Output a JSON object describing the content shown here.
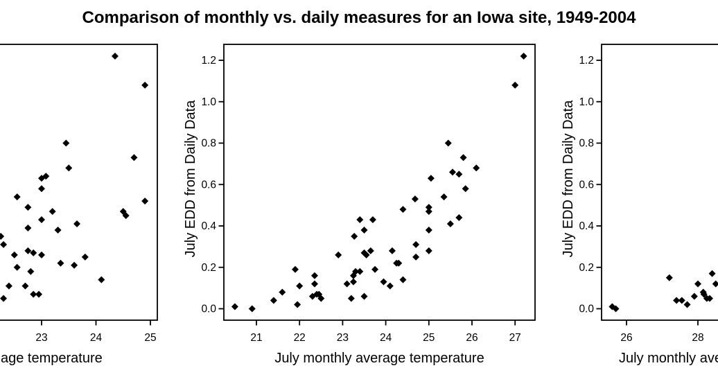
{
  "title": "Comparison of monthly vs. daily measures for an Iowa site, 1949-2004",
  "marker_color": "#000000",
  "axis_color": "#000000",
  "background_color": "#ffffff",
  "chart_data": [
    {
      "id": "left-scatter-panel",
      "position": "left",
      "type": "scatter",
      "title": "",
      "xlabel": "age temperature",
      "xlabel_is_clipped_fragment": true,
      "ylabel": "",
      "x_ticks": [
        23,
        24,
        25
      ],
      "x_tick_labels": [
        "23",
        "24",
        "25"
      ],
      "y_ticks": [],
      "y_tick_labels": [],
      "xlim": [
        22.23,
        25.13
      ],
      "ylim": [
        -0.05,
        1.28
      ],
      "grid": false,
      "points": [
        [
          22.25,
          0.35
        ],
        [
          22.3,
          0.31
        ],
        [
          22.3,
          0.05
        ],
        [
          22.4,
          0.11
        ],
        [
          22.5,
          0.26
        ],
        [
          22.55,
          0.54
        ],
        [
          22.55,
          0.2
        ],
        [
          22.7,
          0.11
        ],
        [
          22.75,
          0.49
        ],
        [
          22.75,
          0.39
        ],
        [
          22.75,
          0.28
        ],
        [
          22.85,
          0.27
        ],
        [
          22.8,
          0.18
        ],
        [
          22.85,
          0.07
        ],
        [
          22.95,
          0.07
        ],
        [
          23.0,
          0.63
        ],
        [
          23.08,
          0.64
        ],
        [
          23.0,
          0.58
        ],
        [
          23.0,
          0.43
        ],
        [
          23.0,
          0.26
        ],
        [
          23.2,
          0.47
        ],
        [
          23.3,
          0.38
        ],
        [
          23.35,
          0.22
        ],
        [
          23.45,
          0.8
        ],
        [
          23.5,
          0.68
        ],
        [
          23.6,
          0.21
        ],
        [
          23.65,
          0.41
        ],
        [
          23.8,
          0.25
        ],
        [
          24.1,
          0.14
        ],
        [
          24.35,
          1.22
        ],
        [
          24.5,
          0.47
        ],
        [
          24.55,
          0.45
        ],
        [
          24.7,
          0.73
        ],
        [
          24.9,
          1.08
        ],
        [
          24.9,
          0.52
        ]
      ]
    },
    {
      "id": "middle-scatter-panel",
      "position": "middle",
      "type": "scatter",
      "title": "",
      "xlabel": "July monthly average temperature",
      "xlabel_is_clipped_fragment": false,
      "ylabel": "July EDD from Daily Data",
      "x_ticks": [
        21,
        22,
        23,
        24,
        25,
        26,
        27
      ],
      "x_tick_labels": [
        "21",
        "22",
        "23",
        "24",
        "25",
        "26",
        "27"
      ],
      "y_ticks": [
        0,
        0.2,
        0.4,
        0.6,
        0.8,
        1.0,
        1.2
      ],
      "y_tick_labels": [
        "0.0",
        "0.2",
        "0.4",
        "0.6",
        "0.8",
        "1.0",
        "1.2"
      ],
      "xlim": [
        20.25,
        27.47
      ],
      "ylim": [
        -0.05,
        1.28
      ],
      "grid": false,
      "points": [
        [
          20.5,
          0.01
        ],
        [
          20.9,
          0.0
        ],
        [
          21.4,
          0.04
        ],
        [
          21.6,
          0.08
        ],
        [
          21.9,
          0.19
        ],
        [
          21.95,
          0.02
        ],
        [
          22.0,
          0.11
        ],
        [
          22.3,
          0.06
        ],
        [
          22.35,
          0.16
        ],
        [
          22.35,
          0.12
        ],
        [
          22.4,
          0.07
        ],
        [
          22.45,
          0.07
        ],
        [
          22.5,
          0.05
        ],
        [
          22.9,
          0.26
        ],
        [
          23.1,
          0.12
        ],
        [
          23.2,
          0.05
        ],
        [
          23.25,
          0.16
        ],
        [
          23.25,
          0.13
        ],
        [
          23.27,
          0.35
        ],
        [
          23.3,
          0.18
        ],
        [
          23.4,
          0.18
        ],
        [
          23.4,
          0.43
        ],
        [
          23.5,
          0.38
        ],
        [
          23.5,
          0.27
        ],
        [
          23.55,
          0.26
        ],
        [
          23.65,
          0.28
        ],
        [
          23.5,
          0.06
        ],
        [
          23.7,
          0.43
        ],
        [
          23.75,
          0.19
        ],
        [
          23.95,
          0.13
        ],
        [
          24.1,
          0.11
        ],
        [
          24.15,
          0.28
        ],
        [
          24.25,
          0.22
        ],
        [
          24.3,
          0.22
        ],
        [
          24.4,
          0.48
        ],
        [
          24.4,
          0.14
        ],
        [
          24.68,
          0.53
        ],
        [
          24.7,
          0.31
        ],
        [
          24.7,
          0.25
        ],
        [
          25.0,
          0.49
        ],
        [
          25.0,
          0.47
        ],
        [
          25.0,
          0.38
        ],
        [
          25.0,
          0.28
        ],
        [
          25.05,
          0.63
        ],
        [
          25.35,
          0.54
        ],
        [
          25.45,
          0.8
        ],
        [
          25.5,
          0.41
        ],
        [
          25.55,
          0.66
        ],
        [
          25.7,
          0.65
        ],
        [
          25.7,
          0.44
        ],
        [
          25.8,
          0.73
        ],
        [
          25.85,
          0.58
        ],
        [
          26.1,
          0.68
        ],
        [
          27.0,
          1.08
        ],
        [
          27.2,
          1.22
        ]
      ]
    },
    {
      "id": "right-scatter-panel",
      "position": "right",
      "type": "scatter",
      "title": "",
      "xlabel": "July monthly ave",
      "xlabel_is_clipped_fragment": true,
      "ylabel": "July EDD from Daily Data",
      "x_ticks": [
        26,
        28
      ],
      "x_tick_labels": [
        "26",
        "28"
      ],
      "y_ticks": [
        0,
        0.2,
        0.4,
        0.6,
        0.8,
        1.0,
        1.2
      ],
      "y_tick_labels": [
        "0.0",
        "0.2",
        "0.4",
        "0.6",
        "0.8",
        "1.0",
        "1.2"
      ],
      "xlim": [
        25.31,
        28.51
      ],
      "ylim": [
        -0.05,
        1.28
      ],
      "grid": false,
      "points": [
        [
          25.6,
          0.01
        ],
        [
          25.7,
          0.0
        ],
        [
          27.2,
          0.15
        ],
        [
          27.4,
          0.04
        ],
        [
          27.55,
          0.04
        ],
        [
          27.7,
          0.02
        ],
        [
          27.9,
          0.06
        ],
        [
          28.0,
          0.12
        ],
        [
          28.15,
          0.08
        ],
        [
          28.17,
          0.07
        ],
        [
          28.25,
          0.05
        ],
        [
          28.33,
          0.05
        ],
        [
          28.4,
          0.17
        ],
        [
          28.5,
          0.12
        ]
      ]
    }
  ]
}
